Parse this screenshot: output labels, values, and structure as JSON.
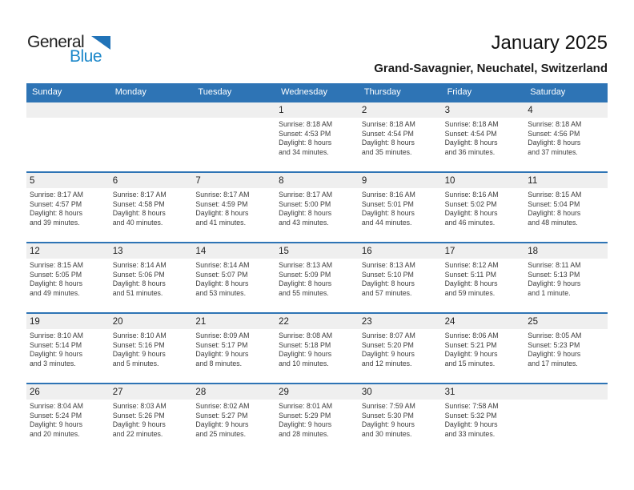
{
  "logo": {
    "part1": "General",
    "part2": "Blue",
    "triangle_icon": "flag-triangle"
  },
  "page": {
    "title": "January 2025",
    "subtitle": "Grand-Savagnier, Neuchatel, Switzerland"
  },
  "colors": {
    "accent": "#2E74B5",
    "stripe": "#EFEFEF",
    "logo_text_blue": "#1B87C9",
    "logo_triangle_blue": "#2173B8",
    "header_text": "#FFFFFF"
  },
  "calendar": {
    "weekday_headers": [
      "Sunday",
      "Monday",
      "Tuesday",
      "Wednesday",
      "Thursday",
      "Friday",
      "Saturday"
    ],
    "weeks": [
      {
        "cells": [
          {
            "day": "",
            "sunrise": "",
            "sunset": "",
            "daylight1": "",
            "daylight2": ""
          },
          {
            "day": "",
            "sunrise": "",
            "sunset": "",
            "daylight1": "",
            "daylight2": ""
          },
          {
            "day": "",
            "sunrise": "",
            "sunset": "",
            "daylight1": "",
            "daylight2": ""
          },
          {
            "day": "1",
            "sunrise": "Sunrise: 8:18 AM",
            "sunset": "Sunset: 4:53 PM",
            "daylight1": "Daylight: 8 hours",
            "daylight2": "and 34 minutes."
          },
          {
            "day": "2",
            "sunrise": "Sunrise: 8:18 AM",
            "sunset": "Sunset: 4:54 PM",
            "daylight1": "Daylight: 8 hours",
            "daylight2": "and 35 minutes."
          },
          {
            "day": "3",
            "sunrise": "Sunrise: 8:18 AM",
            "sunset": "Sunset: 4:54 PM",
            "daylight1": "Daylight: 8 hours",
            "daylight2": "and 36 minutes."
          },
          {
            "day": "4",
            "sunrise": "Sunrise: 8:18 AM",
            "sunset": "Sunset: 4:56 PM",
            "daylight1": "Daylight: 8 hours",
            "daylight2": "and 37 minutes."
          }
        ]
      },
      {
        "cells": [
          {
            "day": "5",
            "sunrise": "Sunrise: 8:17 AM",
            "sunset": "Sunset: 4:57 PM",
            "daylight1": "Daylight: 8 hours",
            "daylight2": "and 39 minutes."
          },
          {
            "day": "6",
            "sunrise": "Sunrise: 8:17 AM",
            "sunset": "Sunset: 4:58 PM",
            "daylight1": "Daylight: 8 hours",
            "daylight2": "and 40 minutes."
          },
          {
            "day": "7",
            "sunrise": "Sunrise: 8:17 AM",
            "sunset": "Sunset: 4:59 PM",
            "daylight1": "Daylight: 8 hours",
            "daylight2": "and 41 minutes."
          },
          {
            "day": "8",
            "sunrise": "Sunrise: 8:17 AM",
            "sunset": "Sunset: 5:00 PM",
            "daylight1": "Daylight: 8 hours",
            "daylight2": "and 43 minutes."
          },
          {
            "day": "9",
            "sunrise": "Sunrise: 8:16 AM",
            "sunset": "Sunset: 5:01 PM",
            "daylight1": "Daylight: 8 hours",
            "daylight2": "and 44 minutes."
          },
          {
            "day": "10",
            "sunrise": "Sunrise: 8:16 AM",
            "sunset": "Sunset: 5:02 PM",
            "daylight1": "Daylight: 8 hours",
            "daylight2": "and 46 minutes."
          },
          {
            "day": "11",
            "sunrise": "Sunrise: 8:15 AM",
            "sunset": "Sunset: 5:04 PM",
            "daylight1": "Daylight: 8 hours",
            "daylight2": "and 48 minutes."
          }
        ]
      },
      {
        "cells": [
          {
            "day": "12",
            "sunrise": "Sunrise: 8:15 AM",
            "sunset": "Sunset: 5:05 PM",
            "daylight1": "Daylight: 8 hours",
            "daylight2": "and 49 minutes."
          },
          {
            "day": "13",
            "sunrise": "Sunrise: 8:14 AM",
            "sunset": "Sunset: 5:06 PM",
            "daylight1": "Daylight: 8 hours",
            "daylight2": "and 51 minutes."
          },
          {
            "day": "14",
            "sunrise": "Sunrise: 8:14 AM",
            "sunset": "Sunset: 5:07 PM",
            "daylight1": "Daylight: 8 hours",
            "daylight2": "and 53 minutes."
          },
          {
            "day": "15",
            "sunrise": "Sunrise: 8:13 AM",
            "sunset": "Sunset: 5:09 PM",
            "daylight1": "Daylight: 8 hours",
            "daylight2": "and 55 minutes."
          },
          {
            "day": "16",
            "sunrise": "Sunrise: 8:13 AM",
            "sunset": "Sunset: 5:10 PM",
            "daylight1": "Daylight: 8 hours",
            "daylight2": "and 57 minutes."
          },
          {
            "day": "17",
            "sunrise": "Sunrise: 8:12 AM",
            "sunset": "Sunset: 5:11 PM",
            "daylight1": "Daylight: 8 hours",
            "daylight2": "and 59 minutes."
          },
          {
            "day": "18",
            "sunrise": "Sunrise: 8:11 AM",
            "sunset": "Sunset: 5:13 PM",
            "daylight1": "Daylight: 9 hours",
            "daylight2": "and 1 minute."
          }
        ]
      },
      {
        "cells": [
          {
            "day": "19",
            "sunrise": "Sunrise: 8:10 AM",
            "sunset": "Sunset: 5:14 PM",
            "daylight1": "Daylight: 9 hours",
            "daylight2": "and 3 minutes."
          },
          {
            "day": "20",
            "sunrise": "Sunrise: 8:10 AM",
            "sunset": "Sunset: 5:16 PM",
            "daylight1": "Daylight: 9 hours",
            "daylight2": "and 5 minutes."
          },
          {
            "day": "21",
            "sunrise": "Sunrise: 8:09 AM",
            "sunset": "Sunset: 5:17 PM",
            "daylight1": "Daylight: 9 hours",
            "daylight2": "and 8 minutes."
          },
          {
            "day": "22",
            "sunrise": "Sunrise: 8:08 AM",
            "sunset": "Sunset: 5:18 PM",
            "daylight1": "Daylight: 9 hours",
            "daylight2": "and 10 minutes."
          },
          {
            "day": "23",
            "sunrise": "Sunrise: 8:07 AM",
            "sunset": "Sunset: 5:20 PM",
            "daylight1": "Daylight: 9 hours",
            "daylight2": "and 12 minutes."
          },
          {
            "day": "24",
            "sunrise": "Sunrise: 8:06 AM",
            "sunset": "Sunset: 5:21 PM",
            "daylight1": "Daylight: 9 hours",
            "daylight2": "and 15 minutes."
          },
          {
            "day": "25",
            "sunrise": "Sunrise: 8:05 AM",
            "sunset": "Sunset: 5:23 PM",
            "daylight1": "Daylight: 9 hours",
            "daylight2": "and 17 minutes."
          }
        ]
      },
      {
        "cells": [
          {
            "day": "26",
            "sunrise": "Sunrise: 8:04 AM",
            "sunset": "Sunset: 5:24 PM",
            "daylight1": "Daylight: 9 hours",
            "daylight2": "and 20 minutes."
          },
          {
            "day": "27",
            "sunrise": "Sunrise: 8:03 AM",
            "sunset": "Sunset: 5:26 PM",
            "daylight1": "Daylight: 9 hours",
            "daylight2": "and 22 minutes."
          },
          {
            "day": "28",
            "sunrise": "Sunrise: 8:02 AM",
            "sunset": "Sunset: 5:27 PM",
            "daylight1": "Daylight: 9 hours",
            "daylight2": "and 25 minutes."
          },
          {
            "day": "29",
            "sunrise": "Sunrise: 8:01 AM",
            "sunset": "Sunset: 5:29 PM",
            "daylight1": "Daylight: 9 hours",
            "daylight2": "and 28 minutes."
          },
          {
            "day": "30",
            "sunrise": "Sunrise: 7:59 AM",
            "sunset": "Sunset: 5:30 PM",
            "daylight1": "Daylight: 9 hours",
            "daylight2": "and 30 minutes."
          },
          {
            "day": "31",
            "sunrise": "Sunrise: 7:58 AM",
            "sunset": "Sunset: 5:32 PM",
            "daylight1": "Daylight: 9 hours",
            "daylight2": "and 33 minutes."
          },
          {
            "day": "",
            "sunrise": "",
            "sunset": "",
            "daylight1": "",
            "daylight2": ""
          }
        ]
      }
    ]
  }
}
